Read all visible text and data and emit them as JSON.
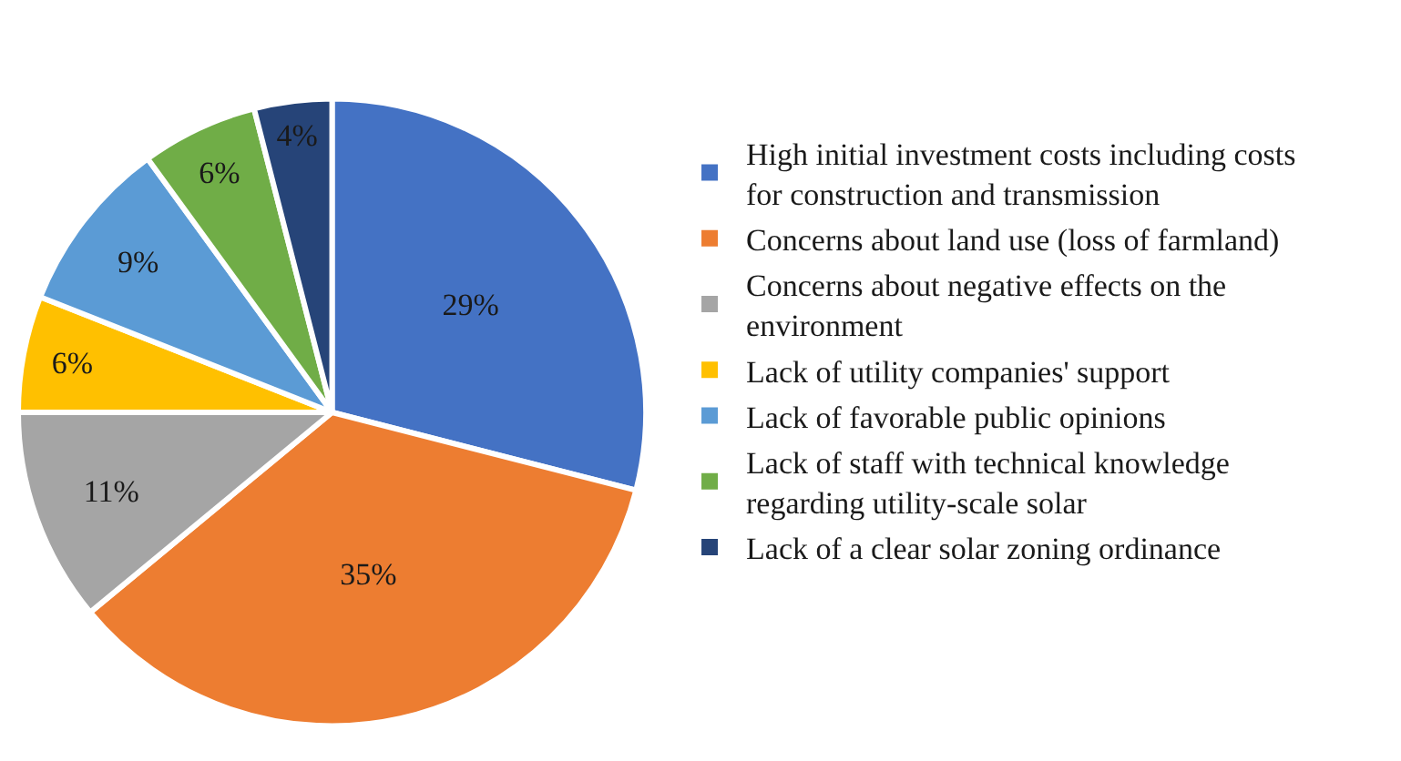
{
  "chart_data": {
    "type": "pie",
    "categories": [
      "High initial investment costs including costs for construction and transmission",
      "Concerns about land use (loss of farmland)",
      "Concerns about negative effects on the environment",
      "Lack of utility companies' support",
      "Lack of favorable public opinions",
      "Lack of staff with technical knowledge regarding utility-scale solar",
      "Lack of a clear solar zoning ordinance"
    ],
    "values": [
      29,
      35,
      11,
      6,
      9,
      6,
      4
    ],
    "value_labels": [
      "29%",
      "35%",
      "11%",
      "6%",
      "9%",
      "6%",
      "4%"
    ],
    "colors": [
      "#4472c4",
      "#ed7d31",
      "#a5a5a5",
      "#ffc000",
      "#5b9bd5",
      "#70ad47",
      "#264478"
    ],
    "legend": "right"
  }
}
